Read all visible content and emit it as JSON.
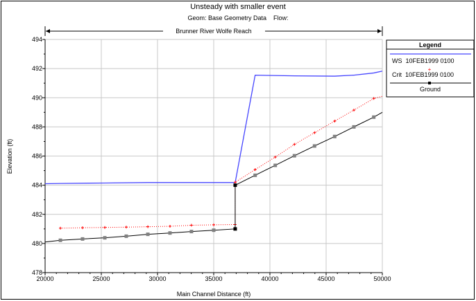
{
  "chart_data": {
    "type": "line",
    "title": "Unsteady with smaller event",
    "subtitle": "Geom: Base Geometry Data    Flow:",
    "reach_label": "Brunner River Wolfe Reach",
    "xlabel": "Main Channel Distance (ft)",
    "ylabel": "Elevation (ft)",
    "xlim": [
      20000,
      50000
    ],
    "ylim": [
      478,
      494
    ],
    "xticks": [
      "20000",
      "25000",
      "30000",
      "35000",
      "40000",
      "45000",
      "50000"
    ],
    "yticks": [
      "478",
      "480",
      "482",
      "484",
      "486",
      "488",
      "490",
      "492",
      "494"
    ],
    "grid": true,
    "legend": {
      "title": "Legend",
      "placement": "right",
      "entries": [
        "WS  10FEB1999 0100",
        "Crit  10FEB1999 0100",
        "Ground"
      ]
    },
    "series": [
      {
        "name": "WS  10FEB1999 0100",
        "color": "#4444ff",
        "x": [
          20000,
          21360,
          25310,
          29140,
          33020,
          36910,
          38685,
          42180,
          45760,
          47470,
          49240,
          50000
        ],
        "y": [
          484.1,
          484.12,
          484.15,
          484.18,
          484.18,
          484.18,
          491.55,
          491.5,
          491.48,
          491.55,
          491.7,
          491.83
        ]
      },
      {
        "name": "Crit  10FEB1999 0100",
        "color": "#ff0000",
        "x": [
          21360,
          23330,
          25310,
          27220,
          29140,
          31110,
          33020,
          35000,
          36910,
          36910,
          38685,
          40475,
          42180,
          43970,
          45760,
          47470,
          49240,
          50000
        ],
        "y": [
          481.05,
          481.08,
          481.1,
          481.12,
          481.15,
          481.18,
          481.25,
          481.28,
          481.3,
          484.2,
          485.07,
          485.93,
          486.8,
          487.6,
          488.4,
          489.15,
          489.95,
          490.1
        ]
      },
      {
        "name": "Ground",
        "color": "#000000",
        "x": [
          20000,
          21360,
          23330,
          25310,
          27220,
          29140,
          31110,
          33020,
          35000,
          36910,
          36910,
          38685,
          40475,
          42180,
          43970,
          45760,
          47470,
          49240,
          50000
        ],
        "y": [
          480.1,
          480.22,
          480.31,
          480.39,
          480.5,
          480.63,
          480.72,
          480.82,
          480.91,
          481.0,
          484.0,
          484.68,
          485.36,
          486.02,
          486.69,
          487.34,
          488.0,
          488.67,
          489.0
        ]
      }
    ]
  }
}
